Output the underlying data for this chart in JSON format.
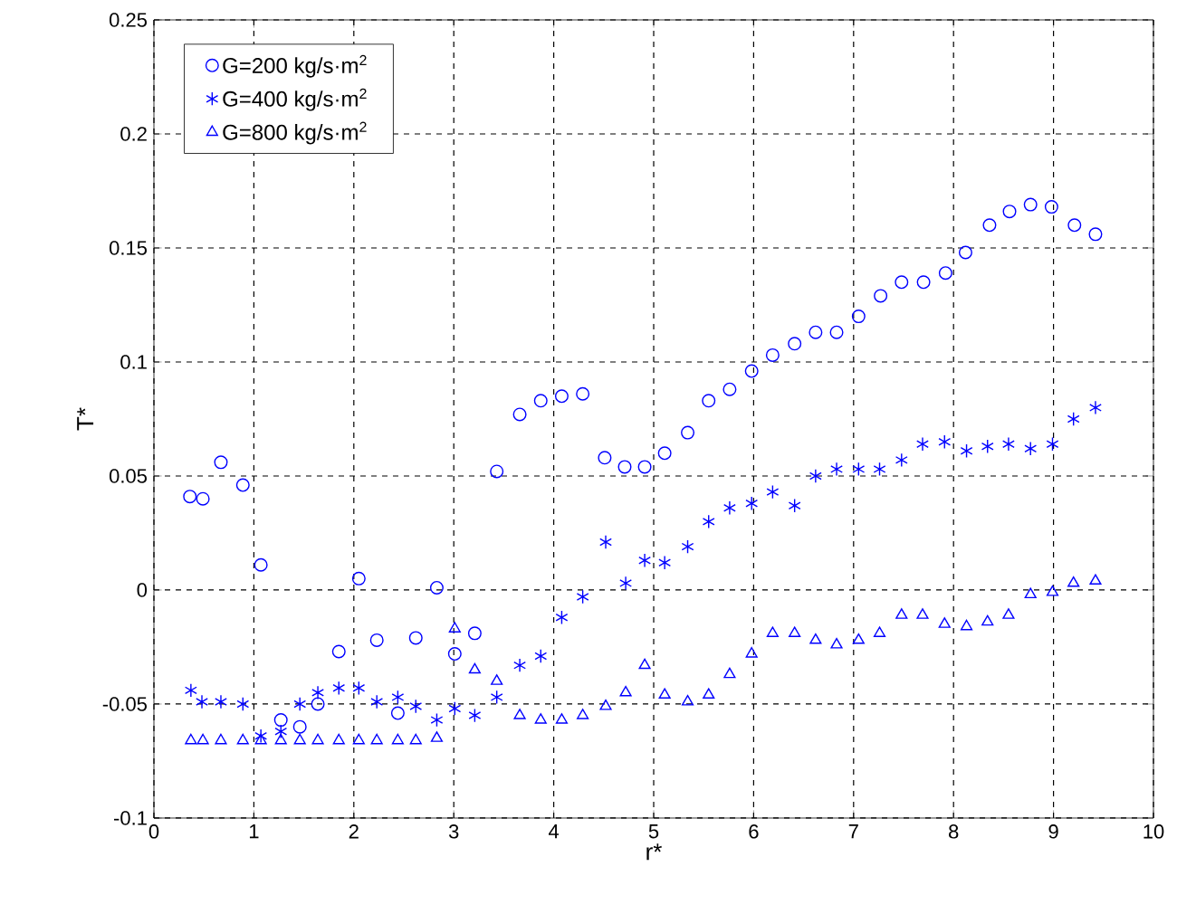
{
  "chart_data": {
    "type": "scatter",
    "xlabel": "r*",
    "ylabel": "T*",
    "xlim": [
      0,
      10
    ],
    "ylim": [
      -0.1,
      0.25
    ],
    "xticks": [
      0,
      1,
      2,
      3,
      4,
      5,
      6,
      7,
      8,
      9,
      10
    ],
    "yticks": [
      -0.1,
      -0.05,
      0,
      0.05,
      0.1,
      0.15,
      0.2,
      0.25
    ],
    "grid": true,
    "legend": "top left",
    "line_style": "none",
    "series": [
      {
        "name": "G=200 kg/s·m$^{2}$",
        "color": "#0000ff",
        "marker": "circle",
        "x": [
          0.36,
          0.49,
          0.67,
          0.89,
          1.07,
          1.27,
          1.46,
          1.64,
          1.85,
          2.05,
          2.23,
          2.44,
          2.62,
          2.83,
          3.01,
          3.21,
          3.43,
          3.66,
          3.87,
          4.08,
          4.29,
          4.51,
          4.71,
          4.91,
          5.11,
          5.34,
          5.55,
          5.76,
          5.98,
          6.19,
          6.41,
          6.62,
          6.83,
          7.05,
          7.27,
          7.48,
          7.7,
          7.92,
          8.12,
          8.36,
          8.56,
          8.77,
          8.98,
          9.21,
          9.42
        ],
        "values": [
          0.041,
          0.04,
          0.056,
          0.046,
          0.011,
          -0.057,
          -0.06,
          -0.05,
          -0.027,
          0.005,
          -0.022,
          -0.054,
          -0.021,
          0.001,
          -0.028,
          -0.019,
          0.052,
          0.077,
          0.083,
          0.085,
          0.086,
          0.058,
          0.054,
          0.054,
          0.06,
          0.069,
          0.083,
          0.088,
          0.096,
          0.103,
          0.108,
          0.113,
          0.113,
          0.12,
          0.129,
          0.135,
          0.135,
          0.139,
          0.148,
          0.16,
          0.166,
          0.169,
          0.168,
          0.16,
          0.156
        ]
      },
      {
        "name": "G=400 kg/s·m$^{2}$",
        "color": "#0000ff",
        "marker": "cross",
        "x": [
          0.37,
          0.48,
          0.67,
          0.89,
          1.07,
          1.27,
          1.46,
          1.64,
          1.85,
          2.05,
          2.23,
          2.44,
          2.62,
          2.83,
          3.01,
          3.21,
          3.43,
          3.66,
          3.87,
          4.08,
          4.29,
          4.52,
          4.72,
          4.91,
          5.11,
          5.34,
          5.55,
          5.76,
          5.98,
          6.19,
          6.41,
          6.62,
          6.83,
          7.05,
          7.26,
          7.48,
          7.69,
          7.91,
          8.13,
          8.34,
          8.55,
          8.77,
          8.99,
          9.2,
          9.42
        ],
        "values": [
          -0.044,
          -0.049,
          -0.049,
          -0.05,
          -0.064,
          -0.062,
          -0.05,
          -0.045,
          -0.043,
          -0.043,
          -0.049,
          -0.047,
          -0.051,
          -0.057,
          -0.052,
          -0.055,
          -0.047,
          -0.033,
          -0.029,
          -0.012,
          -0.003,
          0.021,
          0.003,
          0.013,
          0.012,
          0.019,
          0.03,
          0.036,
          0.038,
          0.043,
          0.037,
          0.05,
          0.053,
          0.053,
          0.053,
          0.057,
          0.064,
          0.065,
          0.061,
          0.063,
          0.064,
          0.062,
          0.064,
          0.075,
          0.08
        ]
      },
      {
        "name": "G=800 kg/s·m$^{2}$",
        "color": "#0000ff",
        "marker": "triangle",
        "x": [
          0.37,
          0.49,
          0.67,
          0.89,
          1.07,
          1.27,
          1.46,
          1.64,
          1.85,
          2.05,
          2.23,
          2.44,
          2.62,
          2.83,
          3.01,
          3.21,
          3.43,
          3.66,
          3.87,
          4.08,
          4.29,
          4.52,
          4.72,
          4.91,
          5.11,
          5.34,
          5.55,
          5.76,
          5.98,
          6.19,
          6.41,
          6.62,
          6.83,
          7.05,
          7.26,
          7.48,
          7.69,
          7.91,
          8.13,
          8.34,
          8.55,
          8.77,
          8.99,
          9.2,
          9.42
        ],
        "values": [
          -0.066,
          -0.066,
          -0.066,
          -0.066,
          -0.066,
          -0.066,
          -0.066,
          -0.066,
          -0.066,
          -0.066,
          -0.066,
          -0.066,
          -0.066,
          -0.065,
          -0.017,
          -0.035,
          -0.04,
          -0.055,
          -0.057,
          -0.057,
          -0.055,
          -0.051,
          -0.045,
          -0.033,
          -0.046,
          -0.049,
          -0.046,
          -0.037,
          -0.028,
          -0.019,
          -0.019,
          -0.022,
          -0.024,
          -0.022,
          -0.019,
          -0.011,
          -0.011,
          -0.015,
          -0.016,
          -0.014,
          -0.011,
          -0.002,
          -0.001,
          0.003,
          0.004
        ]
      }
    ]
  }
}
